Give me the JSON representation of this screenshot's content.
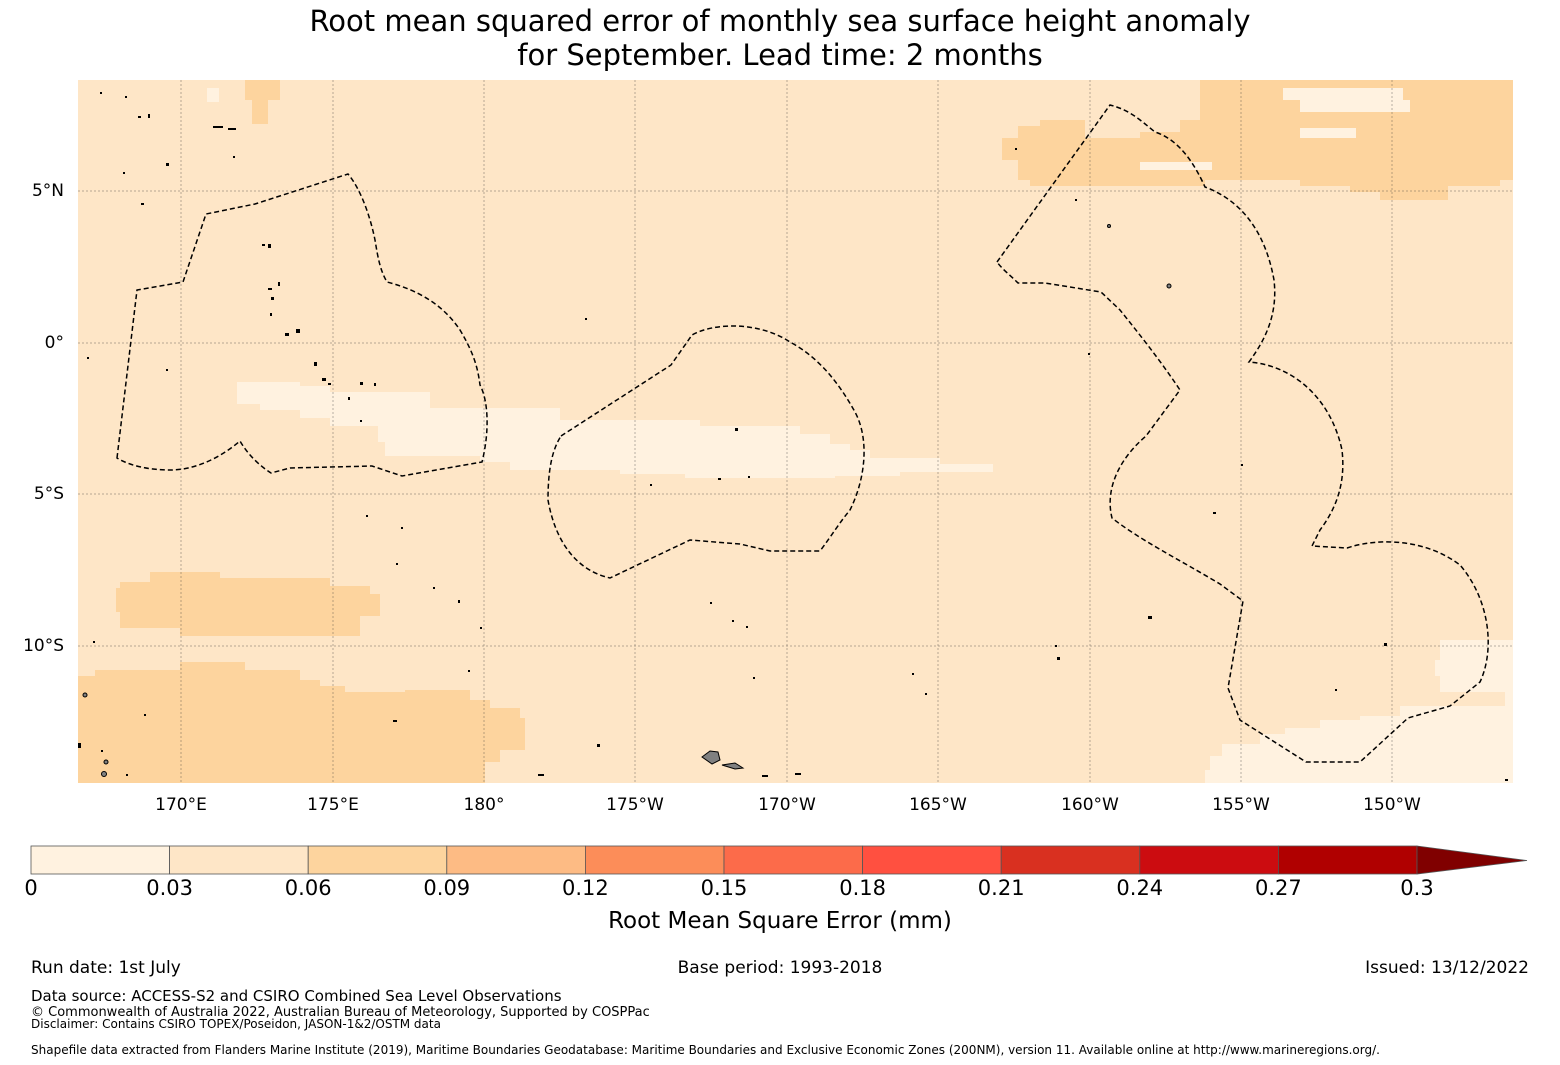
{
  "title": {
    "line1": "Root mean squared error of monthly sea surface height anomaly",
    "line2": "for September. Lead time: 2 months"
  },
  "map": {
    "lat_ticks": [
      "5°N",
      "0°",
      "5°S",
      "10°S"
    ],
    "lon_ticks": [
      "170°E",
      "175°E",
      "180°",
      "175°W",
      "170°W",
      "165°W",
      "160°W",
      "155°W",
      "150°W"
    ],
    "field_colors": {
      "level_0_0.03": "#fff2e0",
      "level_0.03_0.06": "#fee6c7",
      "level_0.06_0.09": "#fdd49e"
    },
    "boundary_style": "dashed black (EEZ outlines)",
    "land_color": "#808080"
  },
  "colorbar": {
    "title": "Root Mean Square Error (mm)",
    "tick_labels": [
      "0",
      "0.03",
      "0.06",
      "0.09",
      "0.12",
      "0.15",
      "0.18",
      "0.21",
      "0.24",
      "0.27",
      "0.3"
    ],
    "colors": [
      "#fff2e0",
      "#fee6c7",
      "#fdd49e",
      "#fdbb84",
      "#fc8d59",
      "#fc6b4a",
      "#ff5040",
      "#d93020",
      "#cc0c10",
      "#b00000",
      "#800000"
    ],
    "extend": "max"
  },
  "footer": {
    "run_date": "Run date: 1st July",
    "base_period": "Base period: 1993-2018",
    "issued": "Issued: 13/12/2022",
    "data_source": "Data source: ACCESS-S2 and CSIRO Combined Sea Level Observations",
    "copyright": "© Commonwealth of Australia 2022, Australian Bureau of Meteorology, Supported by COSPPac",
    "disclaimer": "Disclaimer: Contains CSIRO TOPEX/Poseidon, JASON-1&2/OSTM data",
    "shapefile": "Shapefile data extracted from Flanders Marine Institute (2019), Maritime Boundaries Geodatabase: Maritime Boundaries and Exclusive Economic Zones (200NM), version 11. Available online at http://www.marineregions.org/."
  }
}
